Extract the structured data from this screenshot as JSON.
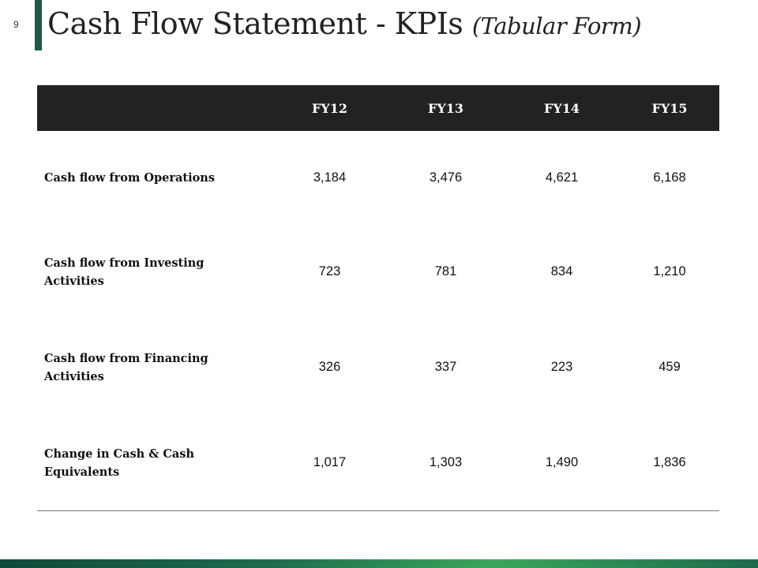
{
  "page_number": "9",
  "title": {
    "main": "Cash Flow Statement - KPIs ",
    "suffix": "(Tabular Form)"
  },
  "table": {
    "columns": [
      "",
      "FY12",
      "FY13",
      "FY14",
      "FY15"
    ],
    "rows": [
      {
        "label": "Cash flow from Operations",
        "values": [
          "3,184",
          "3,476",
          "4,621",
          "6,168"
        ]
      },
      {
        "label": "Cash flow from Investing Activities",
        "values": [
          "723",
          "781",
          "834",
          "1,210"
        ]
      },
      {
        "label": "Cash flow from Financing Activities",
        "values": [
          "326",
          "337",
          "223",
          "459"
        ]
      },
      {
        "label": "Change in Cash & Cash Equivalents",
        "values": [
          "1,017",
          "1,303",
          "1,490",
          "1,836"
        ]
      }
    ]
  },
  "colors": {
    "accent": "#1d5b45",
    "header_bg": "#222222",
    "bottom_bar_light": "#3aa65c"
  }
}
